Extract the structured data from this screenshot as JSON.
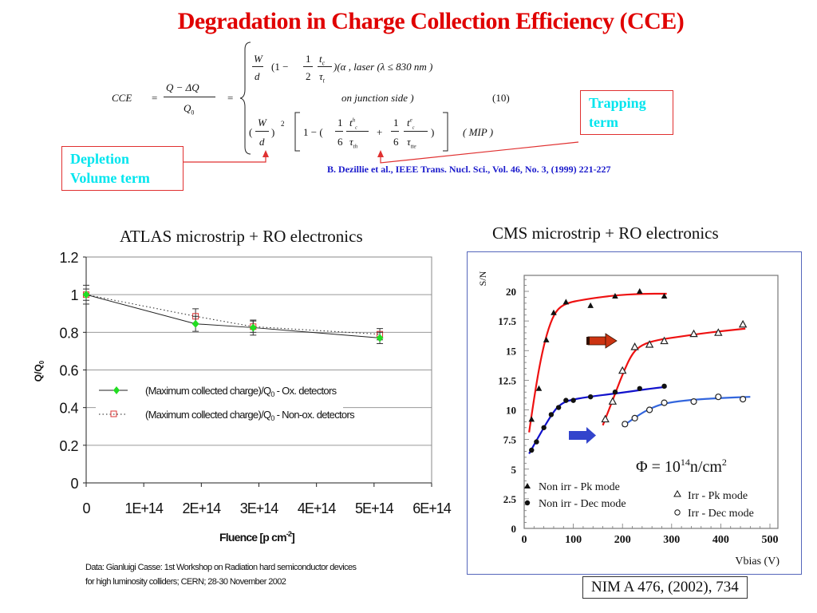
{
  "title": "Degradation in Charge Collection Efficiency (CCE)",
  "equation": {
    "lhs": "CCE",
    "eq1": "=",
    "frac_num": "Q  − ΔQ",
    "frac_den": "Q",
    "frac_den_sub": "0",
    "eq2": "=",
    "case1_a": "W",
    "case1_b": "d",
    "case1_c": "(1 −",
    "case1_d": "1",
    "case1_e": "2",
    "case1_f": "t",
    "case1_f_sub": "c",
    "case1_g": "τ",
    "case1_g_sub": "t",
    "case1_h": ")(α , laser   (λ ≤ 830   nm )",
    "case1_line2": "on   junction     side  )",
    "eq_number": "(10)",
    "case2_open": "(",
    "case2_w": "W",
    "case2_d": "d",
    "case2_close": ")",
    "case2_exp": "2",
    "case2_bracket": "1 −  (",
    "case2_one1": "1",
    "case2_six1": "6",
    "case2_t1": "t",
    "case2_t1_sup": "h",
    "case2_t1_sub": "c",
    "case2_tau1": "τ",
    "case2_tau1_sub": "th",
    "case2_plus": "+",
    "case2_one2": "1",
    "case2_six2": "6",
    "case2_t2": "t",
    "case2_t2_sup": "e",
    "case2_t2_sub": "c",
    "case2_tau2": "τ",
    "case2_tau2_sub": "tte",
    "case2_end": ")",
    "case2_label": "( MIP   )"
  },
  "callouts": {
    "trapping": [
      "Trapping",
      "term"
    ],
    "depletion": [
      "Depletion",
      "Volume term"
    ]
  },
  "reference_dezillie": "B. Dezillie et al., IEEE Trans. Nucl. Sci., Vol. 46, No. 3, (1999) 221-227",
  "data_note": [
    "Data: Gianluigi Casse: 1st Workshop on Radiation hard semiconductor devices",
    "for high luminosity colliders; CERN; 28-30 November 2002"
  ],
  "reference_nim": "NIM A 476, (2002), 734",
  "colors": {
    "title": "#e00000",
    "callout_text": "#00e5ee",
    "callout_border": "#e03030",
    "reference": "#1a1acc",
    "ox_marker": "#22dd22",
    "nonox_marker": "#dd3333",
    "cms_red": "#ee1111",
    "cms_blue": "#1111cc",
    "cms_lightblue": "#3366dd"
  },
  "chart_data": [
    {
      "type": "line",
      "title": "ATLAS microstrip + RO electronics",
      "xlabel": "Fluence [p cm-2]",
      "xlabel_main": "Fluence [p cm",
      "xlabel_sup": "-2",
      "xlabel_end": "]",
      "ylabel": "Q/Q0",
      "ylabel_main": "Q/Q",
      "ylabel_sub": "0",
      "xlim": [
        0,
        600000000000000.0
      ],
      "ylim": [
        0,
        1.2
      ],
      "xticks": [
        0,
        100000000000000.0,
        200000000000000.0,
        300000000000000.0,
        400000000000000.0,
        500000000000000.0,
        600000000000000.0
      ],
      "xtick_labels": [
        "0",
        "1E+14",
        "2E+14",
        "3E+14",
        "4E+14",
        "5E+14",
        "6E+14"
      ],
      "yticks": [
        0,
        0.2,
        0.4,
        0.6,
        0.8,
        1,
        1.2
      ],
      "ytick_labels": [
        "0",
        "0.2",
        "0.4",
        "0.6",
        "0.8",
        "1",
        "1.2"
      ],
      "grid": "horizontal",
      "legend_position": "center-left",
      "series": [
        {
          "name": "(Maximum collected charge)/Q0 - Ox. detectors",
          "legend_main": "(Maximum collected charge)/Q",
          "legend_sub": "0",
          "legend_end": " - Ox. detectors",
          "marker": "diamond",
          "line": "solid",
          "x": [
            0,
            190000000000000.0,
            290000000000000.0,
            510000000000000.0
          ],
          "y": [
            1.0,
            0.845,
            0.825,
            0.77
          ],
          "err": [
            0.05,
            0.04,
            0.04,
            0.03
          ]
        },
        {
          "name": "(Maximum collected charge)/Q0 - Non-ox. detectors",
          "legend_main": "(Maximum collected charge)/Q",
          "legend_sub": "0",
          "legend_end": " - Non-ox. detectors",
          "marker": "open-square",
          "line": "dotted",
          "x": [
            0,
            190000000000000.0,
            290000000000000.0,
            510000000000000.0
          ],
          "y": [
            1.0,
            0.885,
            0.83,
            0.79
          ],
          "err": [
            0.03,
            0.04,
            0.03,
            0.03
          ]
        }
      ]
    },
    {
      "type": "scatter",
      "title": "CMS microstrip + RO electronics",
      "xlabel": "Vbias (V)",
      "ylabel": "S/N",
      "xlim": [
        0,
        520
      ],
      "ylim": [
        0,
        22
      ],
      "xticks": [
        0,
        100,
        200,
        300,
        400,
        500
      ],
      "xtick_labels": [
        "0",
        "100",
        "200",
        "300",
        "400",
        "500"
      ],
      "yticks": [
        0,
        2.5,
        5,
        7.5,
        10,
        12.5,
        15,
        17.5,
        20
      ],
      "ytick_labels": [
        "0",
        "2.5",
        "5",
        "7.5",
        "10",
        "12.5",
        "15",
        "17.5",
        "20"
      ],
      "grid": "none",
      "annotation": {
        "main": "Φ = 10",
        "sup": "14",
        "end": "n/cm",
        "sup2": "2"
      },
      "legend_position": "bottom",
      "series": [
        {
          "name": "Non irr - Pk mode",
          "marker": "filled-triangle",
          "x": [
            15,
            30,
            45,
            60,
            85,
            135,
            185,
            235,
            285
          ],
          "y": [
            9.2,
            11.8,
            15.9,
            18.2,
            19.1,
            18.8,
            19.6,
            20.0,
            19.6
          ]
        },
        {
          "name": "Non irr - Dec mode",
          "marker": "filled-circle",
          "x": [
            15,
            25,
            40,
            55,
            70,
            85,
            100,
            135,
            185,
            235,
            285
          ],
          "y": [
            6.6,
            7.3,
            8.5,
            9.6,
            10.2,
            10.8,
            10.8,
            11.1,
            11.5,
            11.8,
            12.0
          ]
        },
        {
          "name": "Irr - Pk mode",
          "marker": "open-triangle",
          "x": [
            165,
            180,
            200,
            225,
            255,
            285,
            345,
            395,
            445
          ],
          "y": [
            9.2,
            10.7,
            13.3,
            15.3,
            15.5,
            15.8,
            16.4,
            16.5,
            17.2
          ]
        },
        {
          "name": "Irr - Dec mode",
          "marker": "open-circle",
          "x": [
            205,
            225,
            255,
            285,
            345,
            395,
            445
          ],
          "y": [
            8.8,
            9.3,
            10.0,
            10.6,
            10.7,
            11.1,
            10.9
          ]
        }
      ],
      "fits": [
        {
          "series": "Non irr - Pk mode",
          "color": "#ee1111",
          "x": [
            10,
            20,
            35,
            50,
            65,
            85,
            120,
            180,
            240,
            290
          ],
          "y": [
            8.1,
            11.0,
            14.6,
            17.0,
            18.4,
            19.0,
            19.3,
            19.65,
            19.8,
            19.8
          ]
        },
        {
          "series": "Non irr - Dec mode",
          "color": "#1111cc",
          "x": [
            10,
            30,
            60,
            75,
            90,
            130,
            190,
            250,
            290
          ],
          "y": [
            6.3,
            7.8,
            9.9,
            10.5,
            10.8,
            11.1,
            11.4,
            11.75,
            11.95
          ]
        },
        {
          "series": "Irr - Pk mode",
          "color": "#ee1111",
          "x": [
            160,
            180,
            200,
            220,
            240,
            270,
            320,
            380,
            450
          ],
          "y": [
            8.7,
            10.8,
            13.0,
            14.8,
            15.5,
            15.9,
            16.2,
            16.55,
            16.85
          ]
        },
        {
          "series": "Irr - Dec mode",
          "color": "#3366dd",
          "x": [
            200,
            230,
            260,
            290,
            340,
            400,
            460
          ],
          "y": [
            8.6,
            9.5,
            10.2,
            10.6,
            10.85,
            11.0,
            11.1
          ]
        }
      ]
    }
  ]
}
